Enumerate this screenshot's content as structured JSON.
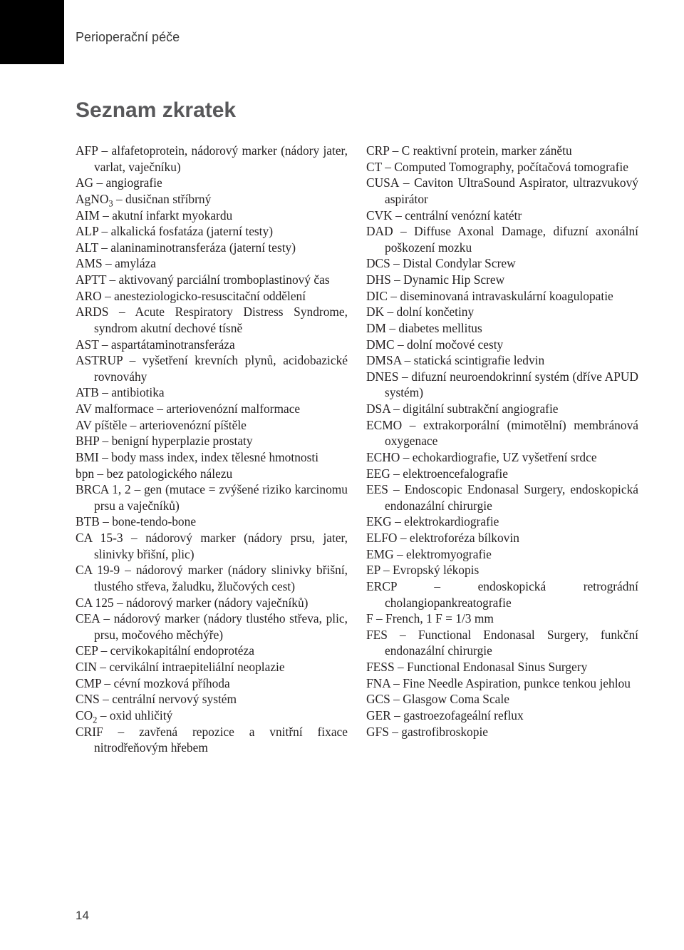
{
  "header": "Perioperační péče",
  "title": "Seznam zkratek",
  "page_number": "14",
  "entries": [
    "AFP – alfafetoprotein, nádorový marker (nádory jater, varlat, vaječníku)",
    "AG – angiografie",
    "AgNO<sub>3</sub> – dusičnan stříbrný",
    "AIM – akutní infarkt myokardu",
    "ALP – alkalická fosfatáza (jaterní testy)",
    "ALT – alaninaminotransferáza (jaterní testy)",
    "AMS – amyláza",
    "APTT – aktivovaný parciální tromboplastinový čas",
    "ARO – anesteziologicko-resuscitační oddělení",
    "ARDS – Acute Respiratory Distress Syndrome, syndrom akutní dechové tísně",
    "AST – aspartátaminotransferáza",
    "ASTRUP – vyšetření krevních plynů, acidobazické rovnováhy",
    "ATB – antibiotika",
    "AV malformace – arteriovenózní malformace",
    "AV píštěle – arteriovenózní píštěle",
    "BHP – benigní hyperplazie prostaty",
    "BMI – body mass index, index tělesné hmotnosti",
    "bpn – bez patologického nálezu",
    "BRCA 1, 2 – gen (mutace = zvýšené riziko karcinomu prsu a vaječníků)",
    "BTB – bone-tendo-bone",
    "CA 15-3 – nádorový marker (nádory prsu, jater, slinivky břišní, plic)",
    "CA 19-9 – nádorový marker (nádory slinivky břišní, tlustého střeva, žaludku, žlučových cest)",
    "CA 125 – nádorový marker (nádory vaječníků)",
    "CEA – nádorový marker (nádory tlustého střeva, plic, prsu, močového měchýře)",
    "CEP – cervikokapitální endoprotéza",
    "CIN – cervikální intraepiteliální neoplazie",
    "CMP – cévní mozková příhoda",
    "CNS – centrální nervový systém",
    "CO<sub>2</sub> – oxid uhličitý",
    "CRIF – zavřená repozice a vnitřní fixace nitrodřeňovým hřebem",
    "CRP – C reaktivní protein, marker zánětu",
    "CT – Computed Tomography, počítačová tomografie",
    "CUSA – Caviton UltraSound Aspirator, ultrazvukový aspirátor",
    "CVK – centrální venózní katétr",
    "DAD – Diffuse Axonal Damage, difuzní axonální poškození mozku",
    "DCS – Distal Condylar Screw",
    "DHS – Dynamic Hip Screw",
    "DIC – diseminovaná intravaskulární koagulopatie",
    "DK – dolní končetiny",
    "DM – diabetes mellitus",
    "DMC – dolní močové cesty",
    "DMSA – statická scintigrafie ledvin",
    "DNES – difuzní neuroendokrinní systém (dříve APUD systém)",
    "DSA – digitální subtrakční angiografie",
    "ECMO – extrakorporální (mimotělní) membránová oxygenace",
    "ECHO – echokardiografie, UZ vyšetření srdce",
    "EEG – elektroencefalografie",
    "EES – Endoscopic Endonasal Surgery, endoskopická endonazální chirurgie",
    "EKG – elektrokardiografie",
    "ELFO – elektroforéza bílkovin",
    "EMG – elektromyografie",
    "EP – Evropský lékopis",
    "ERCP – endoskopická retrográdní cholangiopankreatografie",
    "F – French, 1 F = 1/3 mm",
    "FES – Functional Endonasal Surgery, funkční endonazální chirurgie",
    "FESS – Functional Endonasal Sinus Surgery",
    "FNA – Fine Needle Aspiration, punkce tenkou jehlou",
    "GCS – Glasgow Coma Scale",
    "GER – gastroezofageální reflux",
    "GFS – gastrofibroskopie"
  ]
}
